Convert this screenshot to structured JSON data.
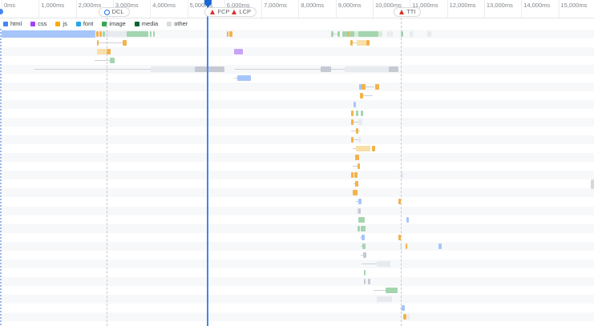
{
  "timeline": {
    "tick_interval_ms": 1000,
    "tick_labels": [
      "0ms",
      "1,000ms",
      "2,000ms",
      "3,000ms",
      "4,000ms",
      "5,000ms",
      "6,000ms",
      "7,000ms",
      "8,000ms",
      "9,000ms",
      "10,000ms",
      "11,000ms",
      "12,000ms",
      "13,000ms",
      "14,000ms",
      "15,000ms"
    ]
  },
  "markers": {
    "dcl": {
      "label": "DCL",
      "time_ms": 2820
    },
    "fcp": {
      "label": "FCP",
      "time_ms": 5560
    },
    "lcp": {
      "label": "LCP",
      "time_ms": 5560
    },
    "tti": {
      "label": "TTI",
      "time_ms": 10760
    }
  },
  "legend": {
    "items": [
      {
        "label": "html",
        "color": "#4285f4"
      },
      {
        "label": "css",
        "color": "#a142f4"
      },
      {
        "label": "js",
        "color": "#f9ab00"
      },
      {
        "label": "font",
        "color": "#25a8e8"
      },
      {
        "label": "image",
        "color": "#34a853"
      },
      {
        "label": "media",
        "color": "#0d652d"
      },
      {
        "label": "other",
        "color": "#dadce0"
      }
    ]
  },
  "palette": {
    "doc": "#a6c6fa",
    "js": "#f3b24a",
    "js_pale": "#f9dfa8",
    "css": "#c9a3f9",
    "img": "#a3d5af",
    "img_pale": "#d9ecdd",
    "other": "#c4c9d2",
    "other_pale": "#e7eaee",
    "line": "#cdd1d7"
  },
  "waterfall": {
    "rows": [
      [
        [
          0,
          2530,
          "doc"
        ],
        [
          2550,
          2610,
          "js"
        ],
        [
          2640,
          2700,
          "js"
        ],
        [
          2720,
          2790,
          "img"
        ],
        [
          2790,
          3370,
          "other_pale"
        ],
        [
          3370,
          3950,
          "img"
        ],
        [
          4000,
          4040,
          "img"
        ],
        [
          4080,
          4130,
          "img"
        ],
        [
          6070,
          6110,
          "js"
        ],
        [
          6130,
          6220,
          "js"
        ],
        [
          8880,
          8940,
          "img"
        ],
        [
          8940,
          9050,
          "line"
        ],
        [
          9050,
          9120,
          "img"
        ],
        [
          9180,
          9240,
          "img"
        ],
        [
          9240,
          9310,
          "img"
        ],
        [
          9310,
          9350,
          "js"
        ],
        [
          9350,
          9500,
          "img"
        ],
        [
          9500,
          9610,
          "img_pale"
        ],
        [
          9610,
          10150,
          "img"
        ],
        [
          10150,
          10260,
          "img_pale"
        ],
        [
          10390,
          10450,
          "other_pale"
        ],
        [
          10480,
          10540,
          "other_pale"
        ],
        [
          10760,
          10820,
          "img"
        ],
        [
          10990,
          11080,
          "other_pale"
        ],
        [
          11470,
          11580,
          "other_pale"
        ]
      ],
      [
        [
          2570,
          2610,
          "js"
        ],
        [
          2610,
          3260,
          "line"
        ],
        [
          3260,
          3370,
          "js"
        ],
        [
          9400,
          9460,
          "js"
        ],
        [
          9460,
          9570,
          "line"
        ],
        [
          9570,
          9830,
          "js_pale"
        ],
        [
          9830,
          9910,
          "js"
        ]
      ],
      [
        [
          2570,
          2830,
          "js_pale"
        ],
        [
          2830,
          2940,
          "js"
        ],
        [
          6260,
          6500,
          "css"
        ]
      ],
      [
        [
          2510,
          2920,
          "line"
        ],
        [
          2920,
          3050,
          "img"
        ]
      ],
      [
        [
          890,
          4020,
          "line"
        ],
        [
          4020,
          5210,
          "other_pale"
        ],
        [
          5210,
          6000,
          "other"
        ],
        [
          6290,
          8600,
          "line"
        ],
        [
          8600,
          8880,
          "other"
        ],
        [
          8880,
          9240,
          "line"
        ],
        [
          9240,
          10430,
          "other_pale"
        ],
        [
          10430,
          10690,
          "other"
        ]
      ],
      [
        [
          6260,
          6350,
          "line"
        ],
        [
          6350,
          6720,
          "doc"
        ]
      ],
      [
        [
          9630,
          9700,
          "doc"
        ],
        [
          9700,
          9810,
          "js"
        ],
        [
          9810,
          10040,
          "line"
        ],
        [
          10070,
          10170,
          "js"
        ]
      ],
      [
        [
          9650,
          9740,
          "js"
        ],
        [
          9740,
          10000,
          "line"
        ]
      ],
      [
        [
          9480,
          9550,
          "doc"
        ]
      ],
      [
        [
          9420,
          9480,
          "js"
        ],
        [
          9550,
          9610,
          "img"
        ],
        [
          9680,
          9740,
          "img"
        ]
      ],
      [
        [
          9420,
          9480,
          "js"
        ],
        [
          9480,
          9610,
          "line"
        ],
        [
          9610,
          9720,
          "other_pale"
        ]
      ],
      [
        [
          9420,
          9550,
          "line"
        ],
        [
          9550,
          9610,
          "js"
        ],
        [
          9610,
          9650,
          "line"
        ]
      ],
      [
        [
          9420,
          9480,
          "js"
        ],
        [
          9480,
          9610,
          "line"
        ],
        [
          9610,
          9680,
          "other_pale"
        ]
      ],
      [
        [
          9460,
          9550,
          "line"
        ],
        [
          9550,
          9930,
          "js_pale"
        ],
        [
          9980,
          10070,
          "js"
        ]
      ],
      [
        [
          9520,
          9630,
          "js"
        ]
      ],
      [
        [
          9460,
          9590,
          "line"
        ],
        [
          9590,
          9650,
          "js"
        ]
      ],
      [
        [
          9420,
          9480,
          "js"
        ],
        [
          9500,
          9590,
          "js"
        ],
        [
          10760,
          10820,
          "other_pale"
        ]
      ],
      [
        [
          9480,
          9520,
          "line"
        ],
        [
          9520,
          9610,
          "js"
        ]
      ],
      [
        [
          9460,
          9590,
          "js"
        ]
      ],
      [
        [
          9550,
          9610,
          "line"
        ],
        [
          9610,
          9700,
          "doc"
        ],
        [
          10690,
          10760,
          "js"
        ]
      ],
      [
        [
          9570,
          9610,
          "other_pale"
        ],
        [
          9610,
          9680,
          "other"
        ]
      ],
      [
        [
          9610,
          9780,
          "img"
        ],
        [
          10910,
          10970,
          "doc"
        ]
      ],
      [
        [
          9590,
          9650,
          "img"
        ],
        [
          9680,
          9810,
          "img"
        ]
      ],
      [
        [
          9650,
          9700,
          "line"
        ],
        [
          9700,
          9780,
          "doc"
        ],
        [
          10690,
          10760,
          "js"
        ]
      ],
      [
        [
          9680,
          9720,
          "line"
        ],
        [
          9720,
          9810,
          "img"
        ],
        [
          10730,
          10780,
          "other_pale"
        ],
        [
          10890,
          10930,
          "js"
        ],
        [
          11770,
          11860,
          "doc"
        ]
      ],
      [
        [
          9680,
          9740,
          "line"
        ],
        [
          9740,
          9830,
          "other"
        ]
      ],
      [
        [
          9700,
          10110,
          "line"
        ],
        [
          10110,
          10480,
          "other_pale"
        ]
      ],
      [
        [
          9760,
          9810,
          "img"
        ]
      ],
      [
        [
          9760,
          9810,
          "other"
        ],
        [
          9870,
          9940,
          "other"
        ]
      ],
      [
        [
          10020,
          10350,
          "line"
        ],
        [
          10350,
          10670,
          "img"
        ]
      ],
      [
        [
          10110,
          10520,
          "other_pale"
        ]
      ],
      [
        [
          10730,
          10780,
          "line"
        ],
        [
          10780,
          10860,
          "doc"
        ]
      ],
      [
        [
          10820,
          10910,
          "js"
        ],
        [
          10930,
          10990,
          "other_pale"
        ]
      ]
    ]
  }
}
